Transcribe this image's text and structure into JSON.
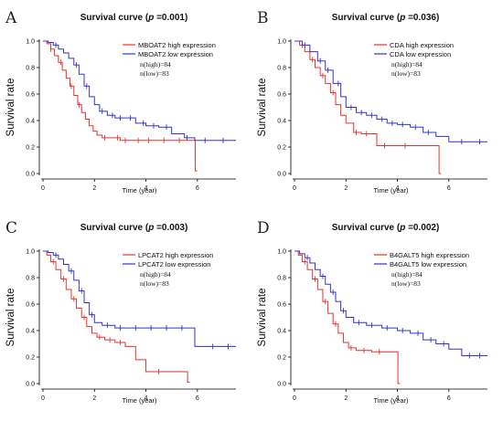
{
  "colors": {
    "high": "#e8312f",
    "low": "#3333cc"
  },
  "chart_data": [
    {
      "type": "line",
      "panel_letter": "A",
      "title": {
        "pre": "Survival curve (",
        "p": "p",
        "post": " =0.001)"
      },
      "xlabel": "Time (year)",
      "ylabel": "Survival rate",
      "xlim": [
        0,
        7.5
      ],
      "ylim": [
        0,
        1.0
      ],
      "xticks": [
        "0",
        "2",
        "4",
        "6"
      ],
      "yticks": [
        "0.0",
        "0.2",
        "0.4",
        "0.6",
        "0.8",
        "1.0"
      ],
      "legend_position": "top-right",
      "n_high": "n(high)=84",
      "n_low": "n(low)=83",
      "series": [
        {
          "name": "MBOAT2 high expression",
          "color_key": "high",
          "x": [
            0,
            0.15,
            0.3,
            0.45,
            0.6,
            0.75,
            0.9,
            1.05,
            1.2,
            1.35,
            1.5,
            1.65,
            1.8,
            1.95,
            2.1,
            2.3,
            2.6,
            3.0,
            3.5,
            4.0,
            5.0,
            5.9,
            5.92,
            6.0
          ],
          "y": [
            1.0,
            0.98,
            0.94,
            0.89,
            0.84,
            0.78,
            0.72,
            0.66,
            0.59,
            0.52,
            0.46,
            0.41,
            0.36,
            0.32,
            0.29,
            0.27,
            0.27,
            0.25,
            0.25,
            0.25,
            0.25,
            0.25,
            0.02,
            0.02
          ],
          "censor": [
            0.3,
            0.7,
            1.1,
            1.4,
            2.4,
            2.9,
            3.2,
            3.7,
            4.1,
            4.7,
            5.3
          ]
        },
        {
          "name": "MBOAT2 low expression",
          "color_key": "low",
          "x": [
            0,
            0.2,
            0.4,
            0.6,
            0.8,
            1.0,
            1.2,
            1.4,
            1.6,
            1.8,
            2.0,
            2.2,
            2.5,
            2.8,
            3.2,
            3.6,
            4.0,
            4.5,
            5.0,
            5.5,
            5.9,
            7.5
          ],
          "y": [
            1.0,
            0.99,
            0.97,
            0.94,
            0.91,
            0.87,
            0.82,
            0.75,
            0.66,
            0.58,
            0.52,
            0.47,
            0.44,
            0.42,
            0.42,
            0.38,
            0.36,
            0.35,
            0.3,
            0.27,
            0.25,
            0.25
          ],
          "censor": [
            0.5,
            1.3,
            1.7,
            2.3,
            2.7,
            3.0,
            3.4,
            3.9,
            4.3,
            4.8,
            5.6,
            6.3,
            7.0
          ]
        }
      ]
    },
    {
      "type": "line",
      "panel_letter": "B",
      "title": {
        "pre": "Survival curve (",
        "p": "p",
        "post": " =0.036)"
      },
      "xlabel": "Time (year)",
      "ylabel": "Survival rate",
      "xlim": [
        0,
        7.5
      ],
      "ylim": [
        0,
        1.0
      ],
      "xticks": [
        "0",
        "2",
        "4",
        "6"
      ],
      "yticks": [
        "0.0",
        "0.2",
        "0.4",
        "0.6",
        "0.8",
        "1.0"
      ],
      "legend_position": "top-right",
      "n_high": "n(high)=84",
      "n_low": "n(low)=83",
      "series": [
        {
          "name": "CDA high expression",
          "color_key": "high",
          "x": [
            0,
            0.2,
            0.4,
            0.6,
            0.8,
            1.0,
            1.2,
            1.4,
            1.6,
            1.8,
            2.0,
            2.3,
            2.6,
            3.0,
            3.2,
            4.0,
            5.0,
            5.6,
            5.62,
            5.7
          ],
          "y": [
            1.0,
            0.97,
            0.92,
            0.86,
            0.8,
            0.74,
            0.68,
            0.61,
            0.52,
            0.44,
            0.38,
            0.31,
            0.3,
            0.3,
            0.21,
            0.21,
            0.21,
            0.21,
            0.0,
            0.0
          ],
          "censor": [
            0.3,
            0.7,
            1.1,
            1.5,
            2.4,
            2.8,
            3.5,
            4.3
          ]
        },
        {
          "name": "CDA low expression",
          "color_key": "low",
          "x": [
            0,
            0.3,
            0.6,
            0.9,
            1.2,
            1.5,
            1.8,
            2.0,
            2.4,
            2.8,
            3.2,
            3.6,
            4.0,
            4.5,
            5.0,
            5.5,
            6.0,
            7.5
          ],
          "y": [
            1.0,
            0.97,
            0.92,
            0.85,
            0.78,
            0.68,
            0.58,
            0.5,
            0.46,
            0.44,
            0.41,
            0.38,
            0.37,
            0.35,
            0.31,
            0.28,
            0.24,
            0.24
          ],
          "censor": [
            0.4,
            1.0,
            1.3,
            1.7,
            2.2,
            2.6,
            3.0,
            3.4,
            3.8,
            4.2,
            4.7,
            5.2,
            6.5,
            7.2
          ]
        }
      ]
    },
    {
      "type": "line",
      "panel_letter": "C",
      "title": {
        "pre": "Survival curve (",
        "p": "p",
        "post": " =0.003)"
      },
      "xlabel": "Time (year)",
      "ylabel": "Survival rate",
      "xlim": [
        0,
        7.5
      ],
      "ylim": [
        0,
        1.0
      ],
      "xticks": [
        "0",
        "2",
        "4",
        "6"
      ],
      "yticks": [
        "0.0",
        "0.2",
        "0.4",
        "0.6",
        "0.8",
        "1.0"
      ],
      "legend_position": "top-right",
      "n_high": "n(high)=84",
      "n_low": "n(low)=83",
      "series": [
        {
          "name": "LPCAT2 high expression",
          "color_key": "high",
          "x": [
            0,
            0.15,
            0.3,
            0.5,
            0.7,
            0.9,
            1.1,
            1.3,
            1.5,
            1.7,
            1.9,
            2.1,
            2.4,
            2.8,
            3.2,
            3.6,
            4.0,
            5.0,
            5.6,
            5.62,
            5.7
          ],
          "y": [
            1.0,
            0.97,
            0.92,
            0.86,
            0.79,
            0.71,
            0.64,
            0.57,
            0.5,
            0.43,
            0.38,
            0.35,
            0.33,
            0.31,
            0.28,
            0.18,
            0.09,
            0.09,
            0.09,
            0.01,
            0.01
          ],
          "censor": [
            0.4,
            0.8,
            1.2,
            1.6,
            2.2,
            2.6,
            3.0,
            4.5
          ]
        },
        {
          "name": "LPCAT2 low expression",
          "color_key": "low",
          "x": [
            0,
            0.2,
            0.4,
            0.6,
            0.8,
            1.0,
            1.2,
            1.4,
            1.6,
            1.8,
            2.0,
            2.3,
            2.8,
            3.4,
            4.0,
            5.0,
            5.9,
            7.5
          ],
          "y": [
            1.0,
            0.99,
            0.97,
            0.94,
            0.9,
            0.85,
            0.78,
            0.7,
            0.61,
            0.52,
            0.46,
            0.44,
            0.42,
            0.42,
            0.42,
            0.42,
            0.28,
            0.28
          ],
          "censor": [
            0.5,
            1.1,
            1.5,
            1.9,
            2.5,
            3.0,
            3.6,
            4.2,
            4.8,
            5.4,
            6.6,
            7.2
          ]
        }
      ]
    },
    {
      "type": "line",
      "panel_letter": "D",
      "title": {
        "pre": "Survival curve (",
        "p": "p",
        "post": " =0.002)"
      },
      "xlabel": "Time (year)",
      "ylabel": "Survival rate",
      "xlim": [
        0,
        7.5
      ],
      "ylim": [
        0,
        1.0
      ],
      "xticks": [
        "0",
        "2",
        "4",
        "6"
      ],
      "yticks": [
        "0.0",
        "0.2",
        "0.4",
        "0.6",
        "0.8",
        "1.0"
      ],
      "legend_position": "top-right",
      "n_high": "n(high)=84",
      "n_low": "n(low)=83",
      "series": [
        {
          "name": "B4GALT5 high expression",
          "color_key": "high",
          "x": [
            0,
            0.15,
            0.3,
            0.5,
            0.7,
            0.9,
            1.1,
            1.3,
            1.5,
            1.7,
            1.9,
            2.1,
            2.4,
            3.0,
            3.6,
            4.0,
            4.02,
            4.1
          ],
          "y": [
            1.0,
            0.97,
            0.92,
            0.86,
            0.79,
            0.71,
            0.62,
            0.53,
            0.45,
            0.38,
            0.31,
            0.27,
            0.25,
            0.24,
            0.24,
            0.24,
            0.0,
            0.0
          ],
          "censor": [
            0.4,
            0.8,
            1.2,
            1.6,
            2.2,
            2.7,
            3.3
          ]
        },
        {
          "name": "B4GALT5 low expression",
          "color_key": "low",
          "x": [
            0,
            0.2,
            0.4,
            0.6,
            0.8,
            1.0,
            1.2,
            1.4,
            1.6,
            1.8,
            2.0,
            2.3,
            2.8,
            3.4,
            4.0,
            4.5,
            5.0,
            5.5,
            6.0,
            6.5,
            7.5
          ],
          "y": [
            1.0,
            0.98,
            0.95,
            0.91,
            0.86,
            0.81,
            0.75,
            0.69,
            0.62,
            0.55,
            0.5,
            0.46,
            0.44,
            0.42,
            0.4,
            0.38,
            0.33,
            0.3,
            0.26,
            0.21,
            0.21
          ],
          "censor": [
            0.5,
            1.1,
            1.5,
            1.9,
            2.5,
            3.0,
            3.6,
            4.2,
            4.8,
            5.3,
            5.8,
            6.8,
            7.2
          ]
        }
      ]
    }
  ]
}
